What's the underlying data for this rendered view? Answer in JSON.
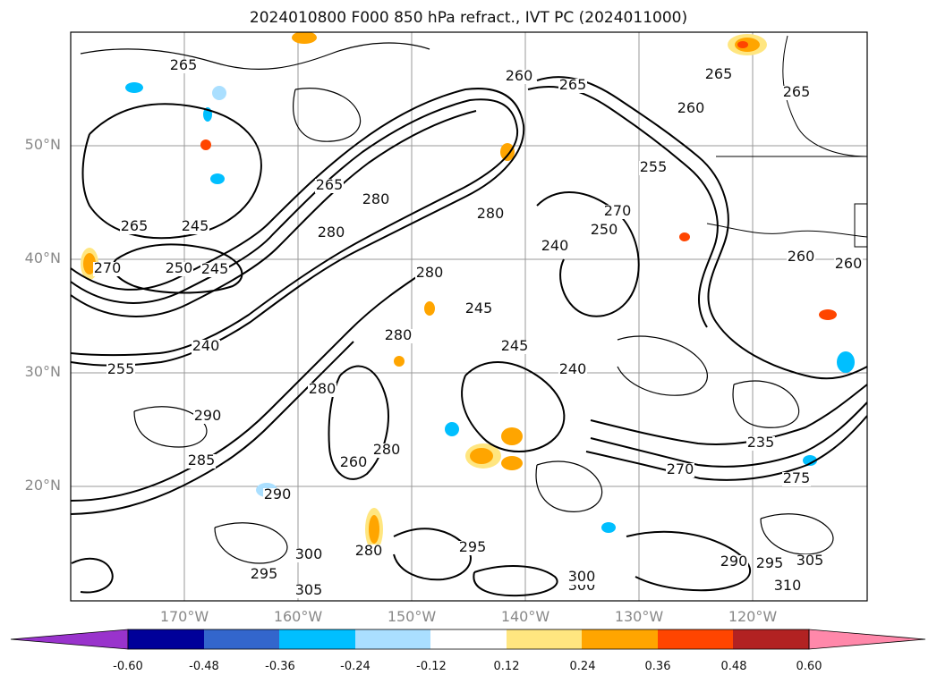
{
  "title": "2024010800 F000 850 hPa refract., IVT PC (2024011000)",
  "map": {
    "lat_labels": [
      "50°N",
      "40°N",
      "30°N",
      "20°N"
    ],
    "lon_labels": [
      "170°W",
      "160°W",
      "150°W",
      "140°W",
      "130°W",
      "120°W"
    ],
    "contour_labels": [
      "265",
      "265",
      "260",
      "265",
      "260",
      "265",
      "265",
      "265",
      "245",
      "280",
      "280",
      "270",
      "280",
      "250",
      "245",
      "250",
      "255",
      "270",
      "245",
      "240",
      "255",
      "280",
      "245",
      "240",
      "280",
      "240",
      "280",
      "290",
      "285",
      "280",
      "260",
      "270",
      "235",
      "275",
      "290",
      "295",
      "300",
      "280",
      "295",
      "290",
      "300",
      "295",
      "310",
      "305",
      "305",
      "300",
      "260",
      "260"
    ],
    "ocean_color": "#ffffff",
    "grid_color": "#999999"
  },
  "colorbar": {
    "ticks": [
      "-0.60",
      "-0.48",
      "-0.36",
      "-0.24",
      "-0.12",
      "0.12",
      "0.24",
      "0.36",
      "0.48",
      "0.60"
    ],
    "colors": [
      "#9933cc",
      "#000099",
      "#3366cc",
      "#00bfff",
      "#aadfff",
      "#ffffff",
      "#ffe680",
      "#ffa500",
      "#ff4500",
      "#b22222",
      "#ff88aa"
    ]
  }
}
